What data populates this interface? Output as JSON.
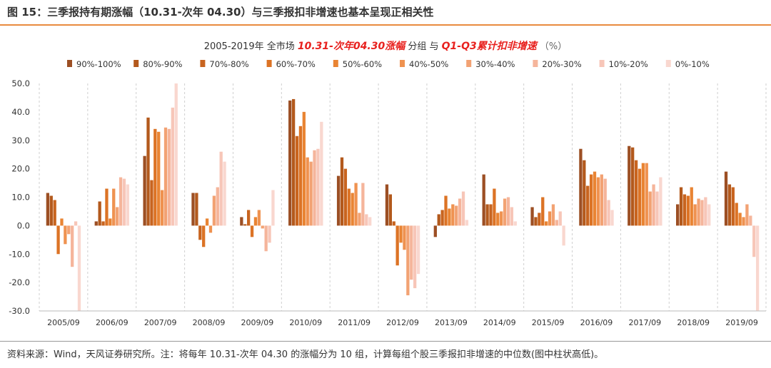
{
  "figure_title": "图 15：三季报持有期涨幅（10.31-次年 04.30）与三季报扣非增速也基本呈现正相关性",
  "source_note": "资料来源：Wind，天风证券研究所。注：将每年 10.31-次年 04.30 的涨幅分为 10 组，计算每组个股三季报扣非增速的中位数(图中柱状高低)。",
  "chart_data": {
    "type": "bar",
    "title_parts": [
      "2005-2019年 全市场 ",
      "10.31-次年04.30涨幅",
      " 分组 与 ",
      "Q1-Q3累计扣非增速",
      "（%）"
    ],
    "categories": [
      "2005/09",
      "2006/09",
      "2007/09",
      "2008/09",
      "2009/09",
      "2010/09",
      "2011/09",
      "2012/09",
      "2013/09",
      "2014/09",
      "2015/09",
      "2016/09",
      "2017/09",
      "2018/09",
      "2019/09"
    ],
    "ylim": [
      -30,
      50
    ],
    "yticks": [
      "-30.0",
      "-20.0",
      "-10.0",
      "0.0",
      "10.0",
      "20.0",
      "30.0",
      "40.0",
      "50.0"
    ],
    "grid": "vertical-dashed",
    "legend_position": "top",
    "series": [
      {
        "name": "90%-100%",
        "color": "#9c4f24",
        "values": [
          11.5,
          1.5,
          24.5,
          11.5,
          3,
          44,
          17.5,
          14.5,
          -4,
          18,
          6.5,
          27,
          28,
          7.5,
          19
        ]
      },
      {
        "name": "80%-90%",
        "color": "#b3591c",
        "values": [
          10.5,
          8.5,
          38,
          11.5,
          0.5,
          44.5,
          24,
          11,
          4,
          7.5,
          3,
          23,
          27.5,
          13.5,
          14.5
        ]
      },
      {
        "name": "70%-80%",
        "color": "#c8641f",
        "values": [
          9,
          1.5,
          16,
          -5,
          5.5,
          31.5,
          20,
          1.5,
          5.5,
          7.5,
          4.5,
          14,
          23,
          11,
          13.5
        ]
      },
      {
        "name": "60%-70%",
        "color": "#dc7325",
        "values": [
          -10,
          13,
          34,
          -7.5,
          -4,
          35,
          13,
          -14,
          10.5,
          13,
          10,
          18,
          20,
          10.5,
          8
        ]
      },
      {
        "name": "50%-60%",
        "color": "#e98433",
        "values": [
          2.5,
          2.5,
          33,
          2.5,
          3,
          40,
          11.5,
          -6,
          6,
          4.5,
          1.5,
          19,
          22,
          13.5,
          4.5
        ]
      },
      {
        "name": "40%-50%",
        "color": "#ef9250",
        "values": [
          -6.5,
          13,
          12.5,
          -2.5,
          5.5,
          24,
          15,
          -8.5,
          7.5,
          5,
          5,
          17,
          22,
          7.5,
          3
        ]
      },
      {
        "name": "30%-40%",
        "color": "#f2a273",
        "values": [
          -3,
          6.5,
          34.5,
          10.5,
          -1,
          22.5,
          4.5,
          -24.5,
          7,
          9.5,
          7.5,
          18,
          12,
          9.5,
          7.5
        ]
      },
      {
        "name": "20%-30%",
        "color": "#f5b59b",
        "values": [
          -14.5,
          17,
          34,
          13.5,
          -9,
          26.5,
          15,
          -19,
          9.5,
          10,
          2,
          16.5,
          14.5,
          9,
          3.5
        ]
      },
      {
        "name": "10%-20%",
        "color": "#f7c6b8",
        "values": [
          1.5,
          16.5,
          41.5,
          26,
          -6,
          27,
          4,
          -22,
          12,
          6.5,
          5,
          9,
          12,
          10,
          -11
        ]
      },
      {
        "name": "0%-10%",
        "color": "#f9d7cf",
        "values": [
          -30,
          14.5,
          50,
          22.5,
          12.5,
          36.5,
          3,
          -17,
          2,
          1.5,
          -7,
          5.5,
          17,
          7.5,
          -30
        ]
      }
    ]
  }
}
